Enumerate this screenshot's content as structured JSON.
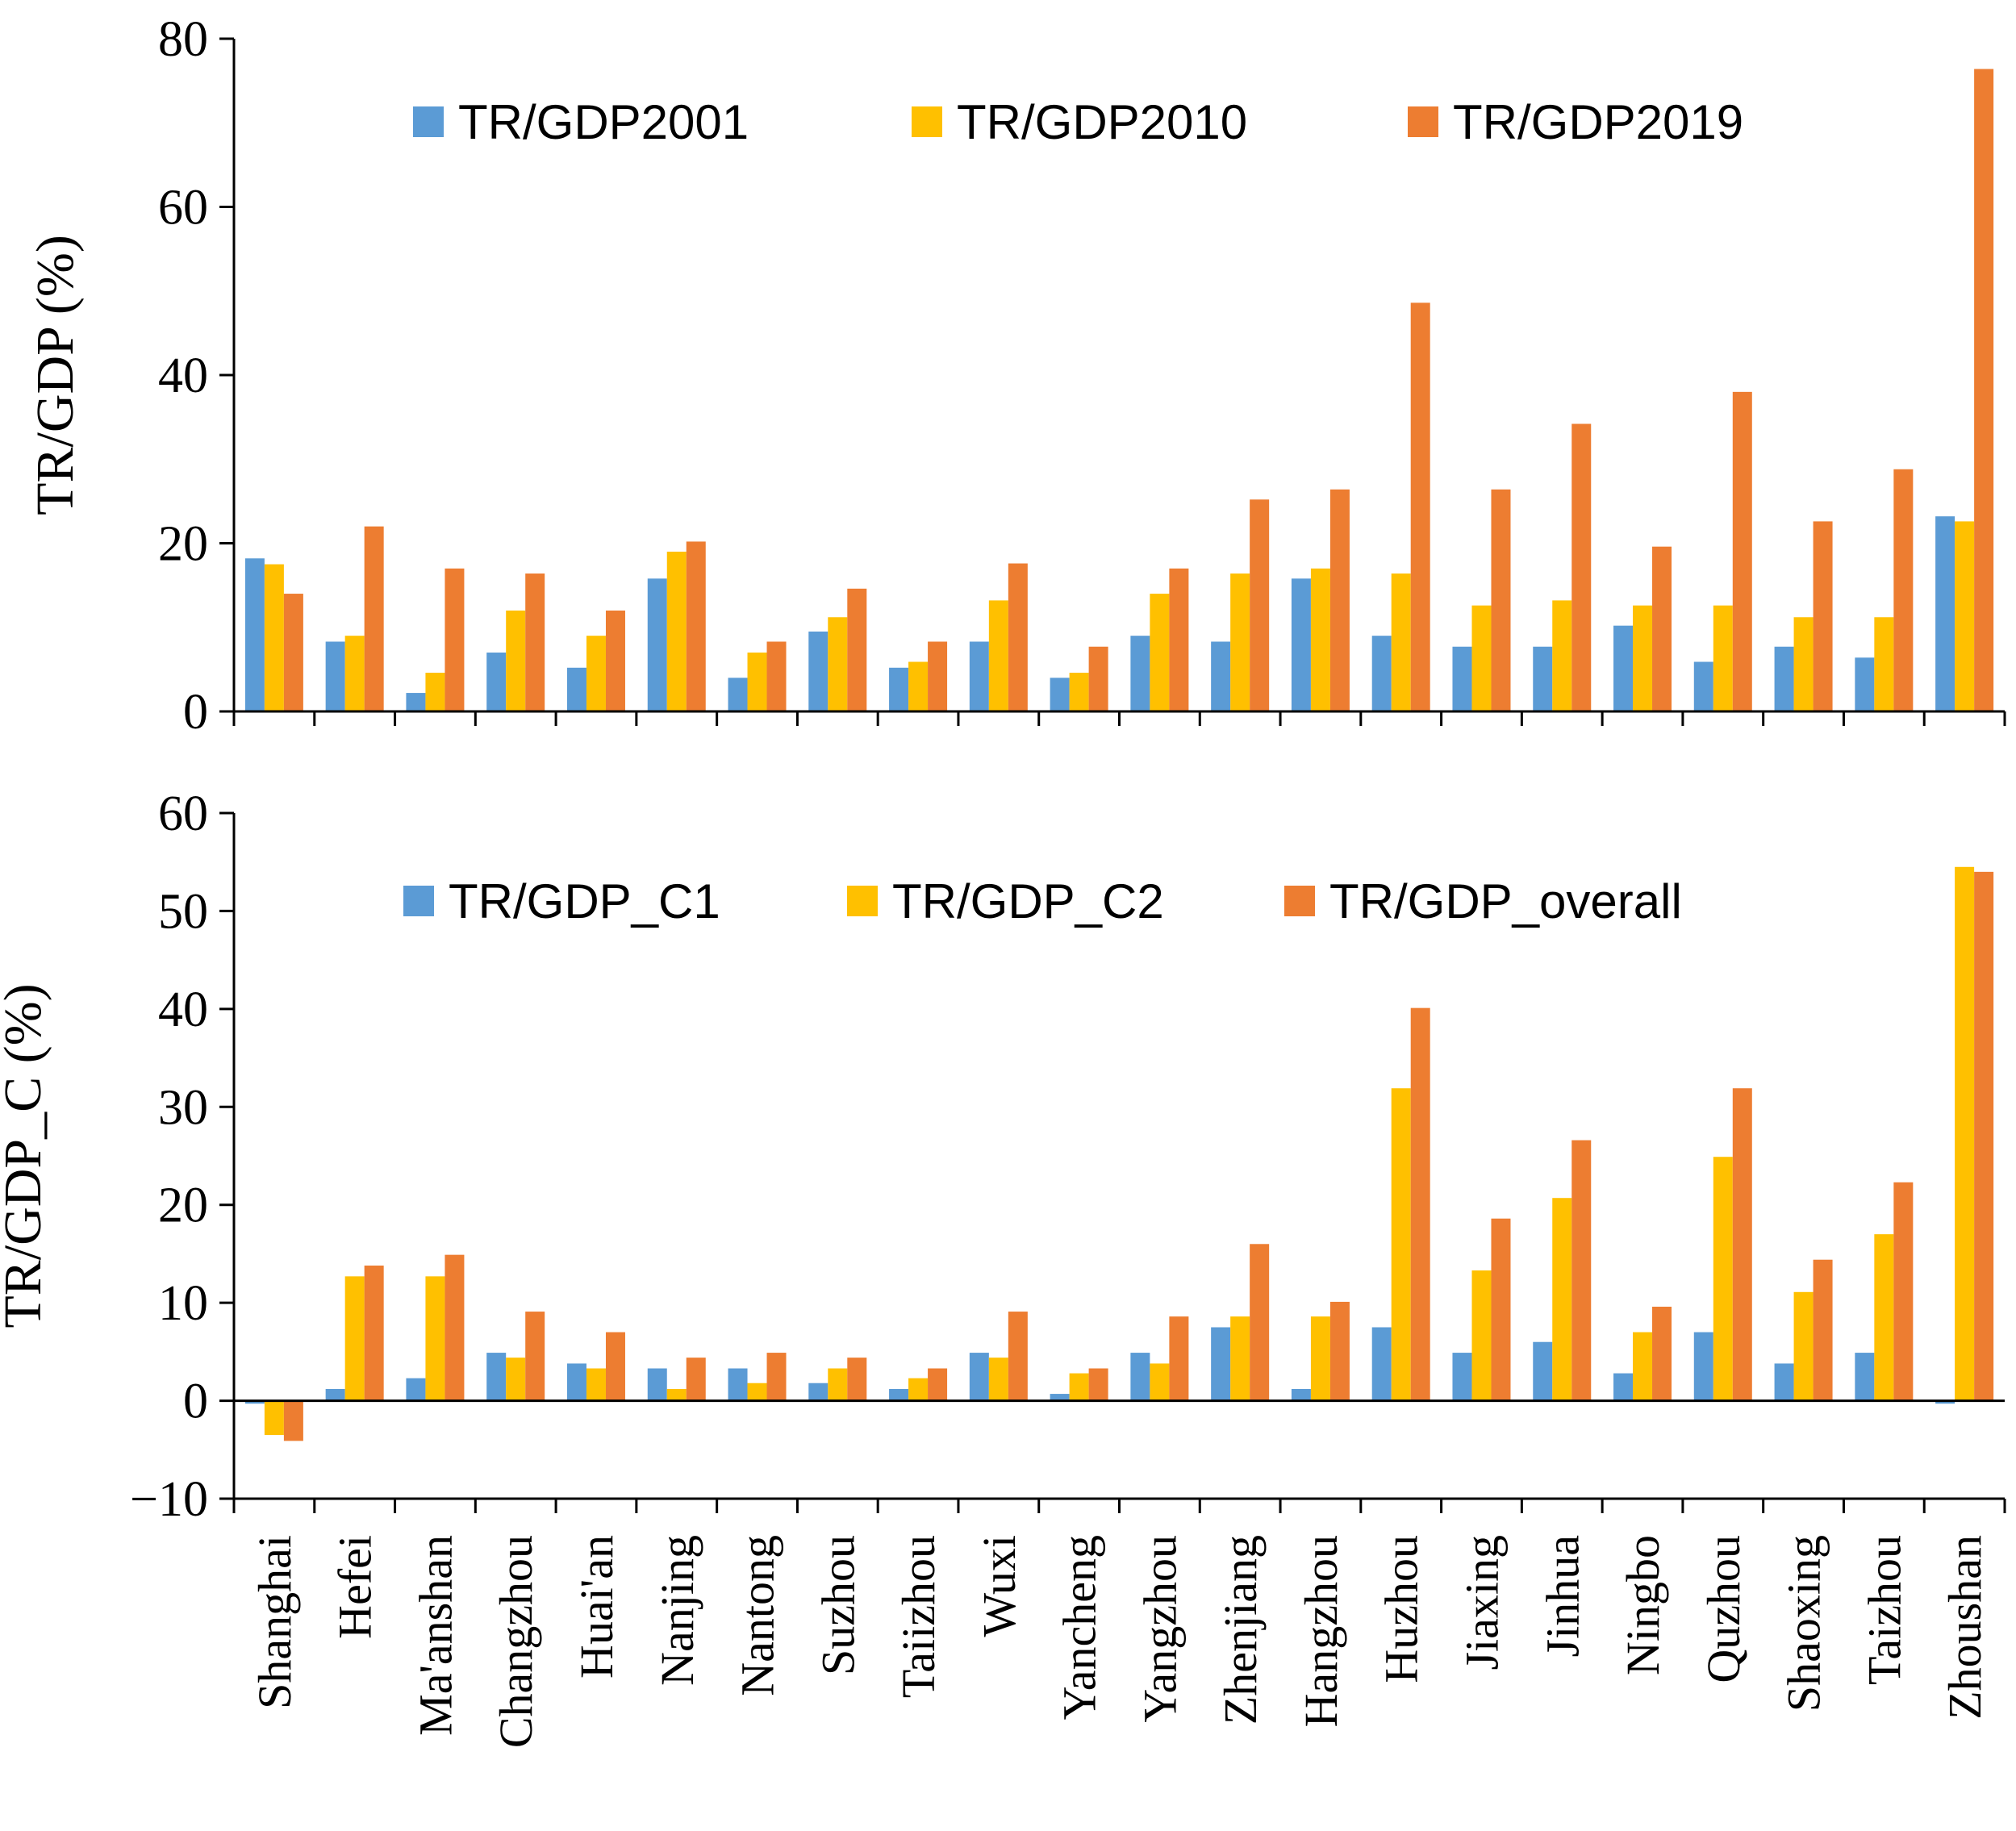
{
  "chart_data": [
    {
      "type": "bar",
      "panel": "top",
      "title": "",
      "xlabel": "",
      "ylabel": "TR/GDP (%)",
      "ylim": [
        0,
        80
      ],
      "yticks": [
        0,
        20,
        40,
        60,
        80
      ],
      "legend": "top",
      "categories": [
        "Shanghai",
        "Hefei",
        "Ma'anshan",
        "Changzhou",
        "Huai'an",
        "Nanjing",
        "Nantong",
        "Suzhou",
        "Taiizhou",
        "Wuxi",
        "Yancheng",
        "Yangzhou",
        "Zhenjiang",
        "Hangzhou",
        "Huzhou",
        "Jiaxing",
        "Jinhua",
        "Ningbo",
        "Quzhou",
        "Shaoxing",
        "Taizhou",
        "Zhoushan"
      ],
      "series": [
        {
          "name": "TR/GDP2001",
          "color": "#5B9BD5",
          "values": [
            18.2,
            8.3,
            2.2,
            7.0,
            5.2,
            15.8,
            4.0,
            9.5,
            5.2,
            8.3,
            4.0,
            9.0,
            8.3,
            15.8,
            9.0,
            7.7,
            7.7,
            10.2,
            5.9,
            7.7,
            6.4,
            23.2
          ]
        },
        {
          "name": "TR/GDP2010",
          "color": "#FFC000",
          "values": [
            17.5,
            9.0,
            4.6,
            12.0,
            9.0,
            19.0,
            7.0,
            11.2,
            5.9,
            13.2,
            4.6,
            14.0,
            16.4,
            17.0,
            16.4,
            12.6,
            13.2,
            12.6,
            12.6,
            11.2,
            11.2,
            22.6
          ]
        },
        {
          "name": "TR/GDP2019",
          "color": "#ED7D31",
          "values": [
            14.0,
            22.0,
            17.0,
            16.4,
            12.0,
            20.2,
            8.3,
            14.6,
            8.3,
            17.6,
            7.7,
            17.0,
            25.2,
            26.4,
            48.6,
            26.4,
            34.2,
            19.6,
            38.0,
            22.6,
            28.8,
            76.4
          ]
        }
      ]
    },
    {
      "type": "bar",
      "panel": "bottom",
      "title": "",
      "xlabel": "",
      "ylabel": "TR/GDP_C (%)",
      "ylim": [
        -10,
        60
      ],
      "yticks": [
        -10,
        0,
        10,
        20,
        30,
        40,
        50,
        60
      ],
      "legend": "top",
      "categories": [
        "Shanghai",
        "Hefei",
        "Ma'anshan",
        "Changzhou",
        "Huai'an",
        "Nanjing",
        "Nantong",
        "Suzhou",
        "Taiizhou",
        "Wuxi",
        "Yancheng",
        "Yangzhou",
        "Zhenjiang",
        "Hangzhou",
        "Huzhou",
        "Jiaxing",
        "Jinhua",
        "Ningbo",
        "Quzhou",
        "Shaoxing",
        "Taizhou",
        "Zhoushan"
      ],
      "series": [
        {
          "name": "TR/GDP_C1",
          "color": "#5B9BD5",
          "values": [
            -0.3,
            1.2,
            2.3,
            4.9,
            3.8,
            3.3,
            3.3,
            1.8,
            1.2,
            4.9,
            0.7,
            4.9,
            7.5,
            1.2,
            7.5,
            4.9,
            6.0,
            2.8,
            7.0,
            3.8,
            4.9,
            -0.3
          ]
        },
        {
          "name": "TR/GDP_C2",
          "color": "#FFC000",
          "values": [
            -3.5,
            12.7,
            12.7,
            4.4,
            3.3,
            1.2,
            1.8,
            3.3,
            2.3,
            4.4,
            2.8,
            3.8,
            8.6,
            8.6,
            31.9,
            13.3,
            20.7,
            7.0,
            24.9,
            11.1,
            17.0,
            54.5
          ]
        },
        {
          "name": "TR/GDP_overall",
          "color": "#ED7D31",
          "values": [
            -4.1,
            13.8,
            14.9,
            9.1,
            7.0,
            4.4,
            4.9,
            4.4,
            3.3,
            9.1,
            3.3,
            8.6,
            16.0,
            10.1,
            40.1,
            18.6,
            26.6,
            9.6,
            31.9,
            14.4,
            22.3,
            54.0
          ]
        }
      ]
    }
  ]
}
